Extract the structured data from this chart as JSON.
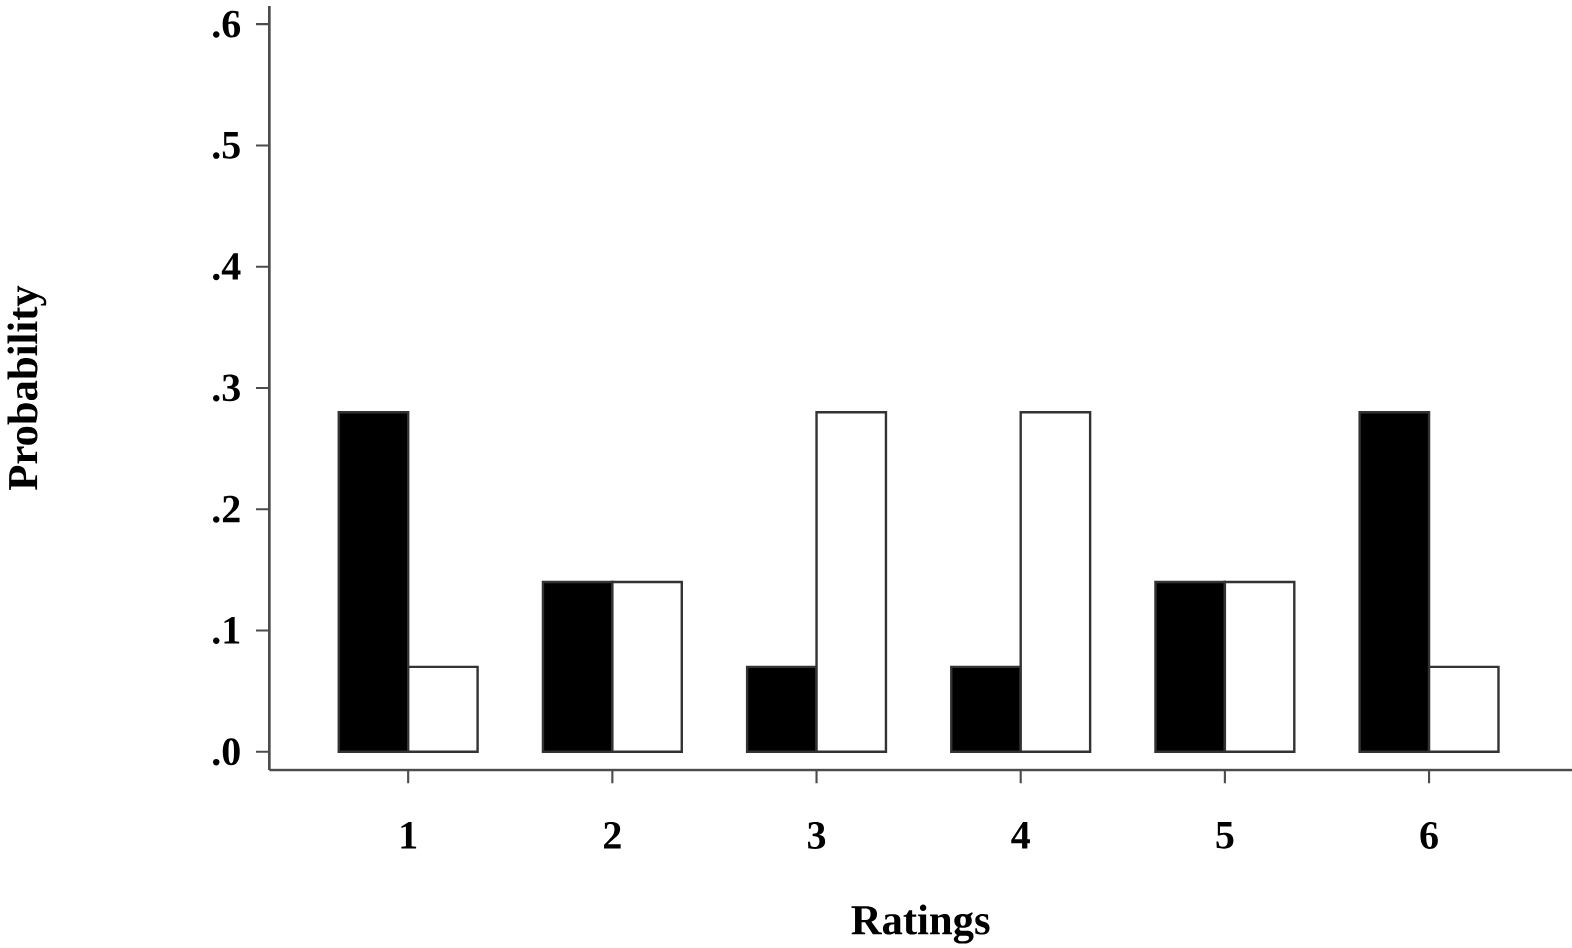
{
  "chart_data": {
    "type": "bar",
    "xlabel": "Ratings",
    "ylabel": "Probability",
    "categories": [
      "1",
      "2",
      "3",
      "4",
      "5",
      "6"
    ],
    "series": [
      {
        "color": "#000000",
        "values": [
          0.28,
          0.14,
          0.07,
          0.07,
          0.14,
          0.28
        ]
      },
      {
        "color": "#ffffff",
        "values": [
          0.07,
          0.14,
          0.28,
          0.28,
          0.14,
          0.07
        ]
      }
    ],
    "ylim": [
      -0.015,
      0.615
    ],
    "yticks": [
      {
        "value": 0,
        "label": ".0"
      },
      {
        "value": 0.1,
        "label": ".1"
      },
      {
        "value": 0.2,
        "label": ".2"
      },
      {
        "value": 0.3,
        "label": ".3"
      },
      {
        "value": 0.4,
        "label": ".4"
      },
      {
        "value": 0.5,
        "label": ".5"
      },
      {
        "value": 0.6,
        "label": ".6"
      }
    ],
    "grid": false
  }
}
